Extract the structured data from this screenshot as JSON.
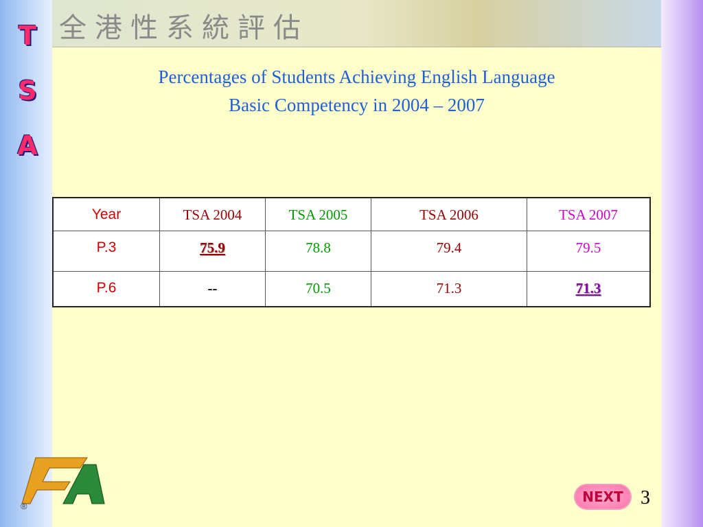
{
  "banner": {
    "title": "全港性系統評估"
  },
  "side": {
    "letters": [
      "T",
      "S",
      "A"
    ]
  },
  "slide": {
    "title_line1": "Percentages of Students Achieving English Language",
    "title_line2": "Basic Competency in 2004 – 2007"
  },
  "table": {
    "header": [
      "Year",
      "TSA 2004",
      "TSA 2005",
      "TSA 2006",
      "TSA 2007"
    ],
    "rows": [
      [
        "P.3",
        "75.9",
        "78.8",
        "79.4",
        "79.5"
      ],
      [
        "P.6",
        "--",
        "70.5",
        "71.3",
        "71.3"
      ]
    ]
  },
  "footer": {
    "registered": "®",
    "next": "NEXT",
    "page": "3"
  }
}
